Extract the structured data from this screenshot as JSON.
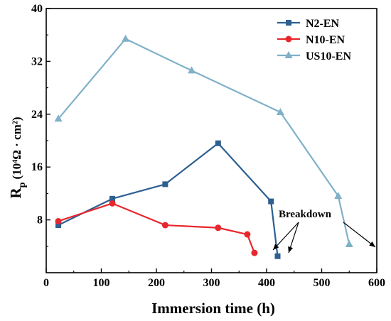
{
  "chart_data": {
    "type": "line",
    "xlabel": "Immersion time (h)",
    "ylabel_main": "R",
    "ylabel_sub": "p",
    "ylabel_units": "(10⁴Ω · cm²)",
    "xlim": [
      0,
      600
    ],
    "ylim": [
      0,
      40
    ],
    "xticks": [
      0,
      100,
      200,
      300,
      400,
      500,
      600
    ],
    "yticks": [
      8,
      16,
      24,
      32,
      40
    ],
    "grid": false,
    "legend_position": "top-right",
    "annotation": "Breakdown",
    "series": [
      {
        "name": "N2-EN",
        "color": "#2d5f91",
        "marker": "square",
        "x": [
          22,
          120,
          216,
          312,
          408,
          420
        ],
        "y": [
          7.2,
          11.2,
          13.4,
          19.6,
          10.8,
          2.5
        ]
      },
      {
        "name": "N10-EN",
        "color": "#e8262d",
        "marker": "circle",
        "x": [
          22,
          120,
          216,
          312,
          365,
          378
        ],
        "y": [
          7.8,
          10.5,
          7.2,
          6.8,
          5.8,
          3.0
        ]
      },
      {
        "name": "US10-EN",
        "color": "#7fb1c7",
        "marker": "triangle",
        "x": [
          22,
          144,
          264,
          425,
          530,
          550
        ],
        "y": [
          23.3,
          35.4,
          30.6,
          24.3,
          11.6,
          4.3
        ]
      }
    ]
  }
}
